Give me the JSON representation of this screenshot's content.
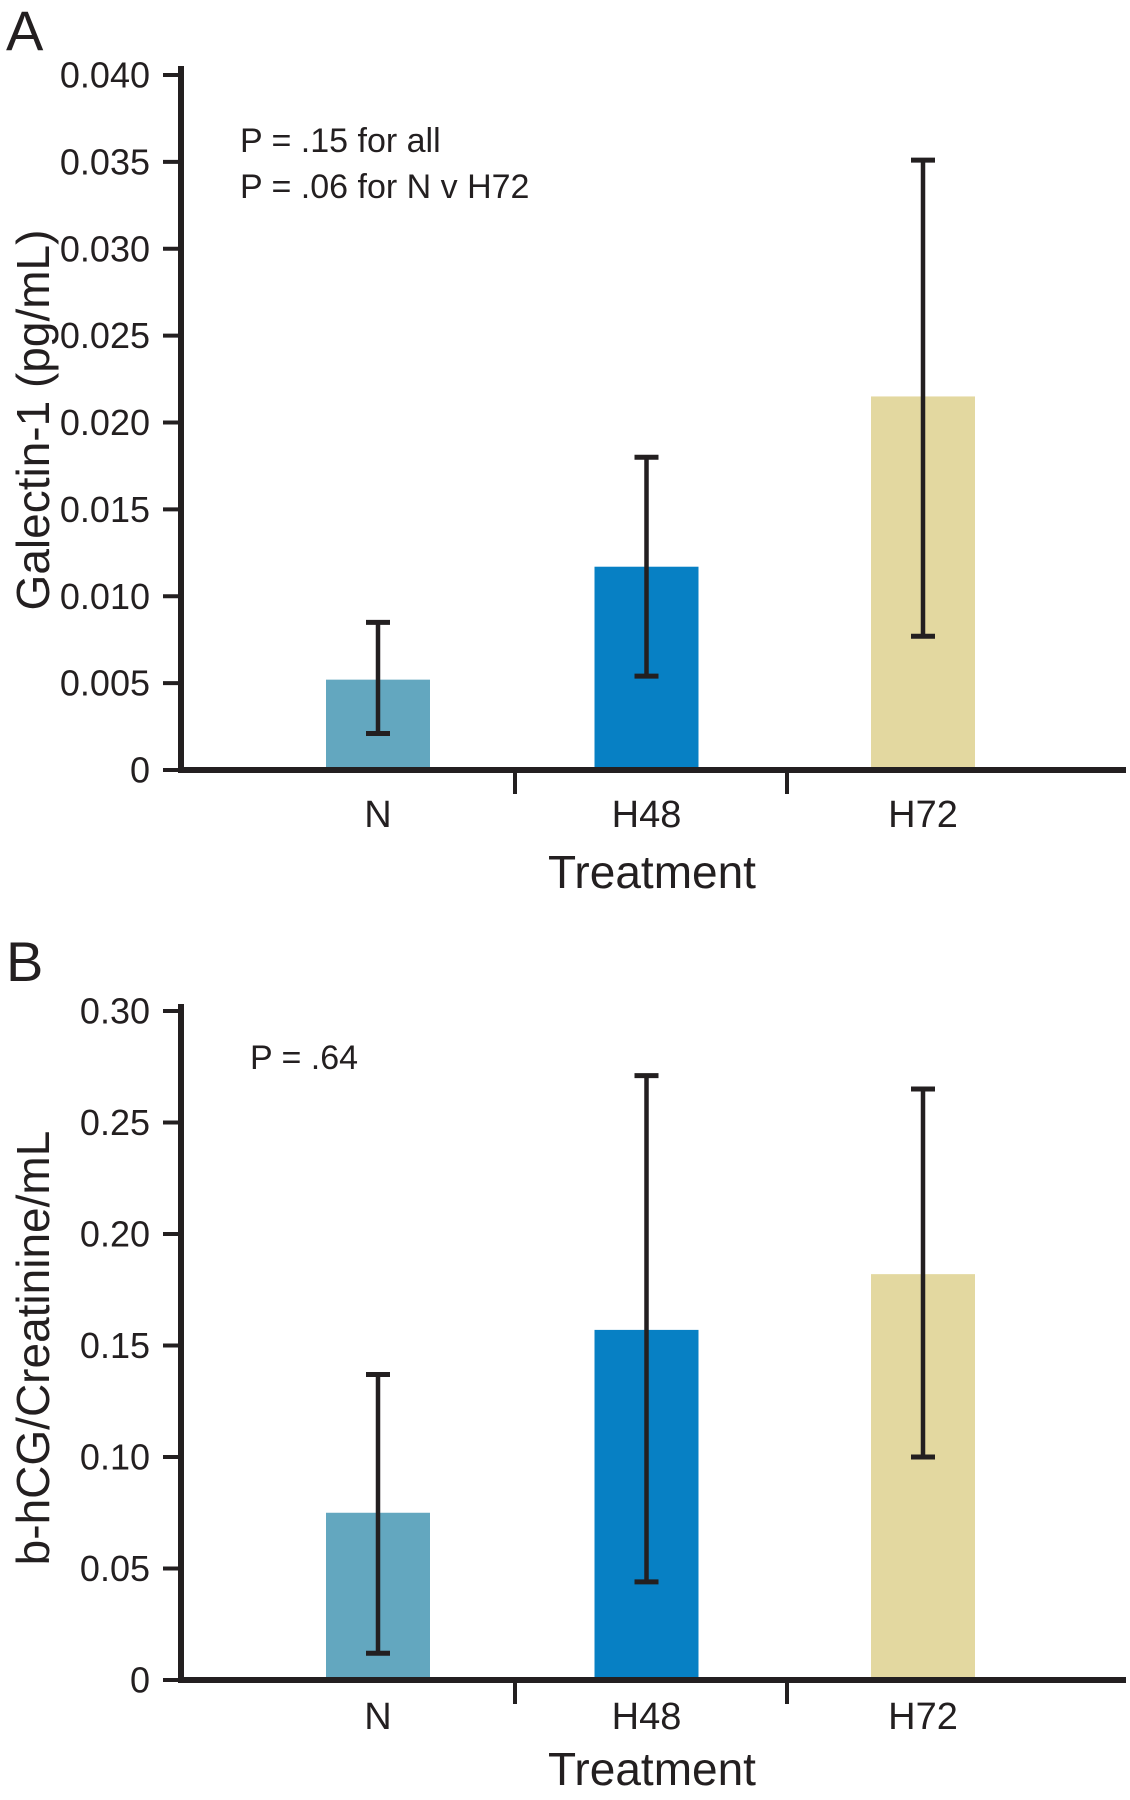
{
  "chart_data": [
    {
      "type": "bar",
      "panel_label": "A",
      "categories": [
        "N",
        "H48",
        "H72"
      ],
      "values": [
        0.0052,
        0.0117,
        0.0215
      ],
      "error_low": [
        0.0021,
        0.0054,
        0.0077
      ],
      "error_high": [
        0.0085,
        0.018,
        0.0351
      ],
      "annotation_lines": [
        "P = .15 for all",
        "P = .06 for N v H72"
      ],
      "xlabel": "Treatment",
      "ylabel": "Galectin-1 (pg/mL)",
      "ylim": [
        0,
        0.04
      ],
      "yticks": [
        0,
        0.005,
        0.01,
        0.015,
        0.02,
        0.025,
        0.03,
        0.035,
        0.04
      ],
      "ytick_labels": [
        "0",
        "0.005",
        "0.010",
        "0.015",
        "0.020",
        "0.025",
        "0.030",
        "0.035",
        "0.040"
      ],
      "bar_colors": [
        "#63a7bf",
        "#0780c4",
        "#e3d8a0"
      ],
      "axis_color": "#231f20",
      "error_bar_color": "#231f20",
      "grid": false,
      "legend": false
    },
    {
      "type": "bar",
      "panel_label": "B",
      "categories": [
        "N",
        "H48",
        "H72"
      ],
      "values": [
        0.075,
        0.157,
        0.182
      ],
      "error_low": [
        0.012,
        0.044,
        0.1
      ],
      "error_high": [
        0.137,
        0.271,
        0.265
      ],
      "annotation_lines": [
        "P = .64"
      ],
      "xlabel": "Treatment",
      "ylabel": "b-hCG/Creatinine/mL",
      "ylim": [
        0,
        0.3
      ],
      "yticks": [
        0,
        0.05,
        0.1,
        0.15,
        0.2,
        0.25,
        0.3
      ],
      "ytick_labels": [
        "0",
        "0.05",
        "0.10",
        "0.15",
        "0.20",
        "0.25",
        "0.30"
      ],
      "bar_colors": [
        "#63a7bf",
        "#0780c4",
        "#e3d8a0"
      ],
      "axis_color": "#231f20",
      "error_bar_color": "#231f20",
      "grid": false,
      "legend": false
    }
  ]
}
